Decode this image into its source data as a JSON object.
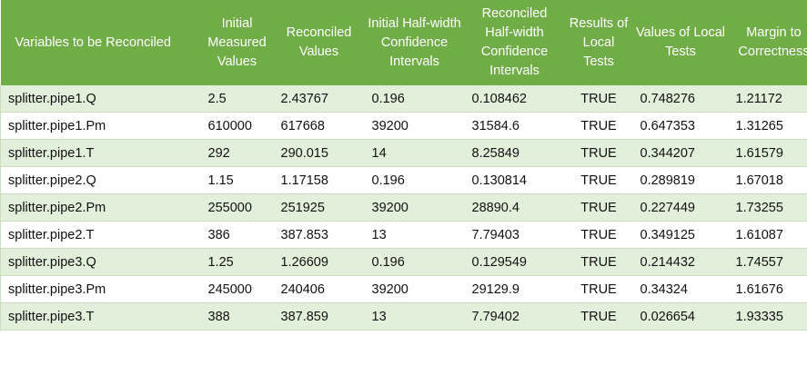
{
  "table": {
    "headers": [
      "Variables to be Reconciled",
      "Initial Measured Values",
      "Reconciled Values",
      "Initial Half-width Confidence Intervals",
      "Reconciled Half-width Confidence Intervals",
      "Results of Local Tests",
      "Values of Local Tests",
      "Margin to Correctness"
    ],
    "rows": [
      [
        "splitter.pipe1.Q",
        "2.5",
        "2.43767",
        "0.196",
        "0.108462",
        "TRUE",
        "0.748276",
        "1.21172"
      ],
      [
        "splitter.pipe1.Pm",
        "610000",
        "617668",
        "39200",
        "31584.6",
        "TRUE",
        "0.647353",
        "1.31265"
      ],
      [
        "splitter.pipe1.T",
        "292",
        "290.015",
        "14",
        "8.25849",
        "TRUE",
        "0.344207",
        "1.61579"
      ],
      [
        "splitter.pipe2.Q",
        "1.15",
        "1.17158",
        "0.196",
        "0.130814",
        "TRUE",
        "0.289819",
        "1.67018"
      ],
      [
        "splitter.pipe2.Pm",
        "255000",
        "251925",
        "39200",
        "28890.4",
        "TRUE",
        "0.227449",
        "1.73255"
      ],
      [
        "splitter.pipe2.T",
        "386",
        "387.853",
        "13",
        "7.79403",
        "TRUE",
        "0.349125",
        "1.61087"
      ],
      [
        "splitter.pipe3.Q",
        "1.25",
        "1.26609",
        "0.196",
        "0.129549",
        "TRUE",
        "0.214432",
        "1.74557"
      ],
      [
        "splitter.pipe3.Pm",
        "245000",
        "240406",
        "39200",
        "29129.9",
        "TRUE",
        "0.34324",
        "1.61676"
      ],
      [
        "splitter.pipe3.T",
        "388",
        "387.859",
        "13",
        "7.79402",
        "TRUE",
        "0.026654",
        "1.93335"
      ]
    ]
  }
}
